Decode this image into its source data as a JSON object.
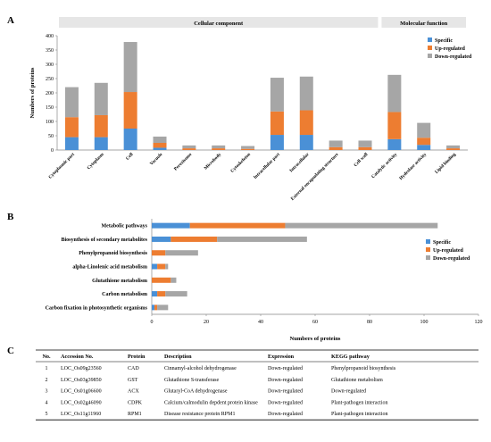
{
  "panel_labels": [
    "A",
    "B",
    "C"
  ],
  "chart_data": [
    {
      "type": "bar",
      "stacked": true,
      "orientation": "vertical",
      "group_bands": [
        {
          "label": "Cellular component",
          "categories": [
            "Cytoplasmic part",
            "Cytoplasm",
            "Cell",
            "Vacuole",
            "Peroxisome",
            "Microbody",
            "Cytoskeleton",
            "Intracellular part",
            "Intracellular",
            "External encapsulating structure",
            "Cell wall"
          ]
        },
        {
          "label": "Molecular function",
          "categories": [
            "Catalytic activity",
            "Hydrolase activity",
            "Lipid binding"
          ]
        }
      ],
      "categories": [
        "Cytoplasmic part",
        "Cytoplasm",
        "Cell",
        "Vacuole",
        "Peroxisome",
        "Microbody",
        "Cytoskeleton",
        "Intracellular part",
        "Intracellular",
        "External encapsulating structure",
        "Cell wall",
        "Catalytic activity",
        "Hydrolase activity",
        "Lipid binding"
      ],
      "series": [
        {
          "name": "Specific",
          "color": "#4a90d6",
          "values": [
            45,
            45,
            75,
            8,
            0,
            0,
            0,
            53,
            53,
            0,
            0,
            38,
            18,
            0
          ]
        },
        {
          "name": "Up-regulated",
          "color": "#ed7d31",
          "values": [
            70,
            77,
            128,
            17,
            6,
            6,
            4,
            82,
            86,
            10,
            10,
            95,
            25,
            6
          ]
        },
        {
          "name": "Down-regulated",
          "color": "#a6a6a6",
          "values": [
            105,
            113,
            175,
            22,
            10,
            10,
            10,
            118,
            118,
            23,
            23,
            130,
            52,
            10
          ]
        }
      ],
      "ylabel": "Numbers of proteins",
      "ylim": [
        0,
        400
      ],
      "yticks": [
        0,
        50,
        100,
        150,
        200,
        250,
        300,
        350,
        400
      ],
      "legend": "top-right",
      "grid": false
    },
    {
      "type": "bar",
      "stacked": true,
      "orientation": "horizontal",
      "categories": [
        "Metabolic pathways",
        "Biosynthesis of secondary metabolites",
        "Phenylpropanoid biosynthesis",
        "alpha-Linolenic acid metabolism",
        "Glutathione metabolism",
        "Carbon metabolism",
        "Carbon fixation in photosynthetic organisms"
      ],
      "series": [
        {
          "name": "Specific",
          "color": "#4a90d6",
          "values": [
            14,
            7,
            0,
            2,
            0,
            2,
            1
          ]
        },
        {
          "name": "Up-regulated",
          "color": "#ed7d31",
          "values": [
            35,
            17,
            5,
            3,
            7,
            3,
            1
          ]
        },
        {
          "name": "Down-regulated",
          "color": "#a6a6a6",
          "values": [
            56,
            33,
            12,
            1,
            2,
            8,
            4
          ]
        }
      ],
      "xlabel": "Numbers of proteins",
      "xlim": [
        0,
        120
      ],
      "xticks": [
        0,
        20,
        40,
        60,
        80,
        100,
        120
      ],
      "legend": "right",
      "grid": false
    },
    {
      "type": "table",
      "columns": [
        "No.",
        "Accession No.",
        "Protein",
        "Description",
        "Expression",
        "KEGG pathway"
      ],
      "rows": [
        [
          "1",
          "LOC_Os09g23560",
          "CAD",
          "Cinnamyl-alcohol dehydrogenase",
          "Down-regulated",
          "Phenylpropanoid biosynthesis"
        ],
        [
          "2",
          "LOC_Os03g39850",
          "GST",
          "Glutathione S-transferase",
          "Down-regulated",
          "Glutathione metabolism"
        ],
        [
          "3",
          "LOC_Os01g06600",
          "ACX",
          "Glutaryl-CoA dehydrogenase",
          "Down-regulated",
          "Down-regulated"
        ],
        [
          "4",
          "LOC_Os02g46090",
          "CDPK",
          "Calcium/calmodulin depdent protein kinase",
          "Down-regulated",
          "Plant-pathogen interaction"
        ],
        [
          "5",
          "LOC_Os11g11960",
          "RPM1",
          "Disease resistance protein RPM1",
          "Down-regulated",
          "Plant-pathogen interaction"
        ]
      ]
    }
  ]
}
